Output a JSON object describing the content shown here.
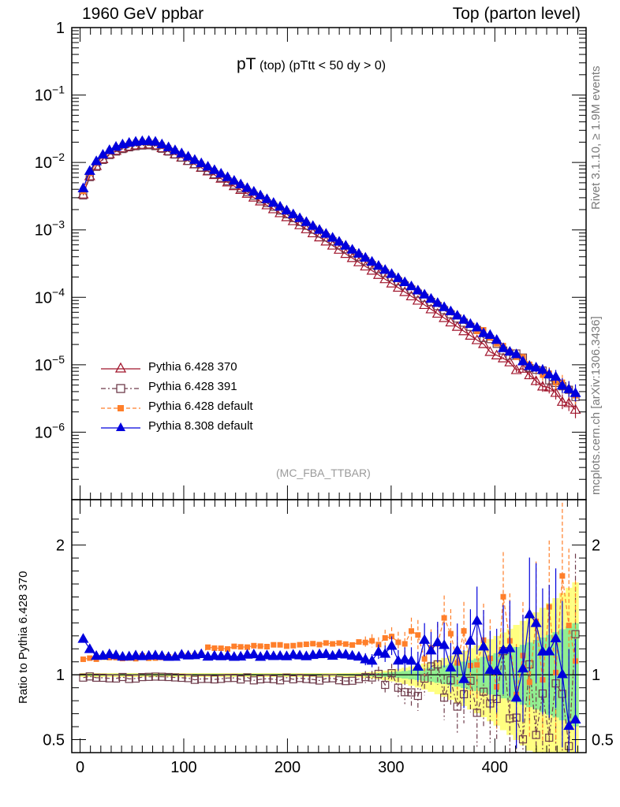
{
  "header": {
    "left": "1960 GeV ppbar",
    "right": "Top (parton level)"
  },
  "side_text": {
    "rivet": "Rivet 3.1.10, ≥ 1.9M events",
    "source": "mcplots.cern.ch [arXiv:1306.3436]"
  },
  "plot_title": {
    "main": "pT",
    "sub1": "(top)",
    "sub2": "(pTtt < 50 dy > 0)"
  },
  "analysis_id": "(MC_FBA_TTBAR)",
  "ratio_ylabel": "Ratio to Pythia 6.428 370",
  "colors": {
    "p370": "#a0142b",
    "p391": "#6e3b4a",
    "pdef": "#ff7f2a",
    "p8": "#0000dd",
    "band_green": "#90ee90",
    "band_yellow": "#ffff80"
  },
  "chart_data": [
    {
      "type": "line",
      "scale": "log",
      "ylim": [
        1e-07,
        1
      ],
      "xlim": [
        -8,
        488
      ],
      "y_tick_labels": [
        "1",
        "10^-1",
        "10^-2",
        "10^-3",
        "10^-4",
        "10^-5",
        "10^-6"
      ],
      "legend_position": "bottom-left",
      "series": [
        {
          "name": "Pythia 6.428 370",
          "key": "p370",
          "marker": "triangle-open",
          "line": "solid",
          "peak_x": 70,
          "peak_y": 0.0185,
          "start_y": 0.00135,
          "end_x": 478,
          "end_y": 2.3e-06
        },
        {
          "name": "Pythia 6.428 391",
          "key": "p391",
          "marker": "square-open",
          "line": "dash-dot",
          "peak_x": 70,
          "peak_y": 0.018,
          "start_y": 0.0013,
          "end_x": 478,
          "end_y": 3.5e-06
        },
        {
          "name": "Pythia 6.428 default",
          "key": "pdef",
          "marker": "square-filled",
          "line": "dashed",
          "peak_x": 70,
          "peak_y": 0.0205,
          "start_y": 0.0015,
          "end_x": 478,
          "end_y": 3.7e-06
        },
        {
          "name": "Pythia 8.308 default",
          "key": "p8",
          "marker": "triangle-filled",
          "line": "solid",
          "peak_x": 70,
          "peak_y": 0.021,
          "start_y": 0.00175,
          "end_x": 478,
          "end_y": 3.8e-06
        }
      ]
    },
    {
      "type": "line",
      "ylabel": "Ratio to Pythia 6.428 370",
      "ylim": [
        0.4,
        2.35
      ],
      "xlim": [
        -8,
        488
      ],
      "x_ticks": [
        0,
        100,
        200,
        300,
        400
      ],
      "y_ticks": [
        0.5,
        1,
        2
      ],
      "series": [
        {
          "name": "Pythia 6.428 391",
          "key": "p391",
          "level_low_x": 0.98,
          "level_high_x": 0.96
        },
        {
          "name": "Pythia 6.428 default",
          "key": "pdef",
          "level_low_x": 1.12,
          "level_high_x": 1.2
        },
        {
          "name": "Pythia 8.308 default",
          "key": "p8",
          "level_low_x": 1.15,
          "level_high_x": 1.15
        }
      ]
    }
  ]
}
